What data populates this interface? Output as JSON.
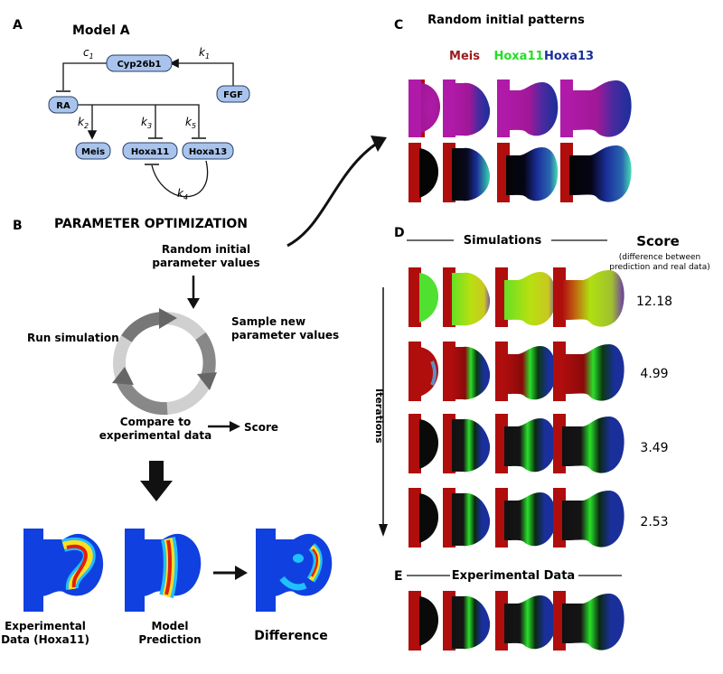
{
  "panels": {
    "a": {
      "letter": "A",
      "title": "Model A",
      "nodes": {
        "cyp": "Cyp26b1",
        "fgf": "FGF",
        "ra": "RA",
        "meis": "Meis",
        "hoxa11": "Hoxa11",
        "hoxa13": "Hoxa13"
      },
      "edges": {
        "c1": "c",
        "c1_sub": "1",
        "k1": "k",
        "k1_sub": "1",
        "k2": "k",
        "k2_sub": "2",
        "k3": "k",
        "k3_sub": "3",
        "k4": "k",
        "k4_sub": "4",
        "k5": "k",
        "k5_sub": "5"
      }
    },
    "b": {
      "letter": "B",
      "title": "PARAMETER OPTIMIZATION",
      "random_line1": "Random initial",
      "random_line2": "parameter values",
      "run_sim": "Run simulation",
      "sample_line1": "Sample new",
      "sample_line2": "parameter values",
      "compare_line1": "Compare to",
      "compare_line2": "experimental data",
      "score": "Score",
      "exp_line1": "Experimental",
      "exp_line2": "Data (Hoxa11)",
      "model_line1": "Model",
      "model_line2": "Prediction",
      "difference": "Difference"
    },
    "c": {
      "letter": "C",
      "title": "Random initial patterns",
      "legend": [
        {
          "label": "Meis",
          "color": "#9b1b1b"
        },
        {
          "label": "Hoxa11",
          "color": "#22e022"
        },
        {
          "label": "Hoxa13",
          "color": "#1a2f9a"
        }
      ]
    },
    "d": {
      "letter": "D",
      "simulations": "Simulations",
      "score_title": "Score",
      "score_sub1": "(difference between",
      "score_sub2": "prediction and real data)",
      "iterations": "Iterations",
      "scores": [
        "12.18",
        "4.99",
        "3.49",
        "2.53"
      ]
    },
    "e": {
      "letter": "E",
      "title": "Experimental Data"
    }
  },
  "colors": {
    "node_fill": "#a9c4ec",
    "node_stroke": "#2b3f66",
    "limb_red": "#b00d0d",
    "meis": "#9b1b1b",
    "hoxa11": "#22e022",
    "hoxa13": "#1a2f9a"
  }
}
